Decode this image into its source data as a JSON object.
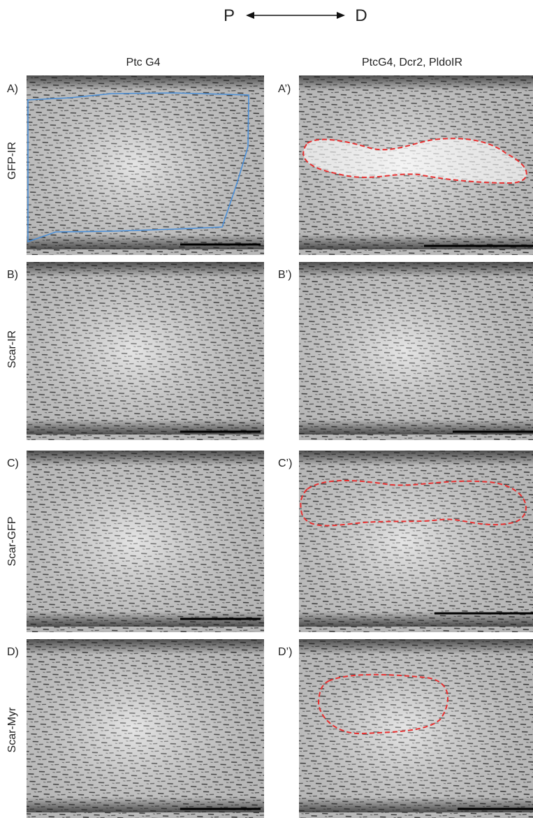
{
  "header": {
    "left_axis": "P",
    "right_axis": "D"
  },
  "columns": [
    "Ptc G4",
    "PtcG4, Dcr2, PldoIR"
  ],
  "rows": [
    {
      "label": "GFP-IR",
      "panels": [
        "A)",
        "A’)"
      ]
    },
    {
      "label": "Scar-IR",
      "panels": [
        "B)",
        "B’)"
      ]
    },
    {
      "label": "Scar-GFP",
      "panels": [
        "C)",
        "C’)"
      ]
    },
    {
      "label": "Scar-Myr",
      "panels": [
        "D)",
        "D’)"
      ]
    }
  ]
}
